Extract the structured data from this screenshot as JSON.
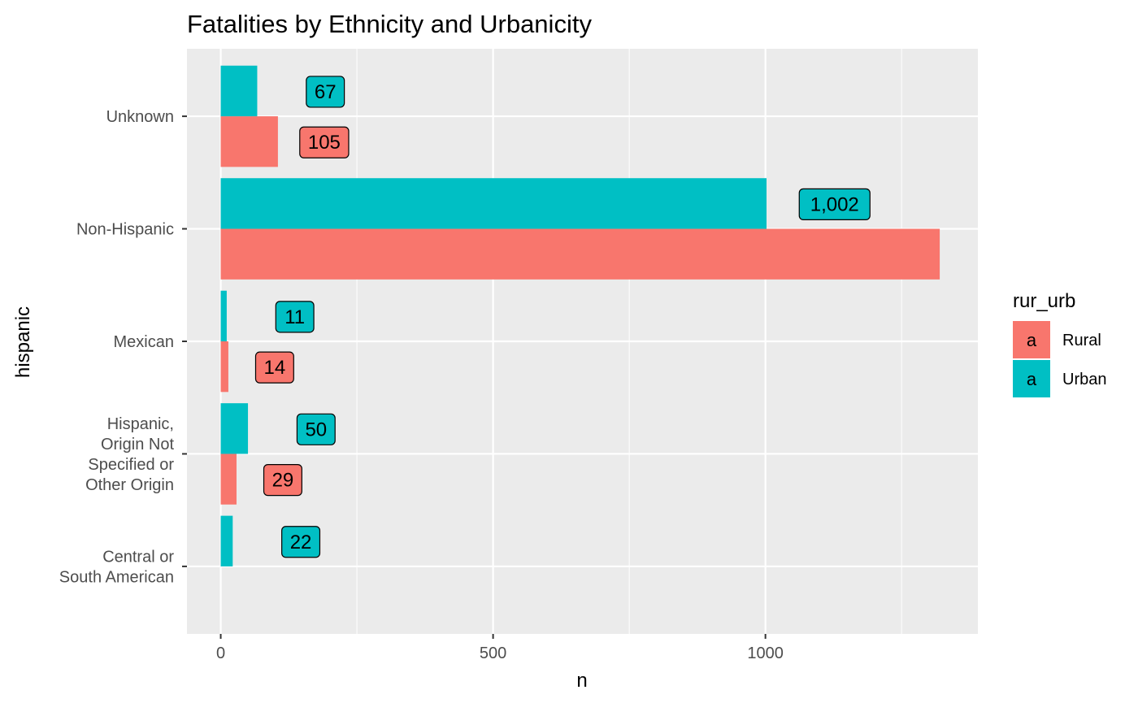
{
  "chart_data": {
    "type": "bar",
    "orientation": "horizontal",
    "title": "Fatalities by Ethnicity and Urbanicity",
    "xlabel": "n",
    "ylabel": "hispanic",
    "xlim": [
      -62,
      1390
    ],
    "xticks": [
      0,
      500,
      1000
    ],
    "xtick_labels": [
      "0",
      "500",
      "1000"
    ],
    "categories": [
      [
        "Unknown"
      ],
      [
        "Non-Hispanic"
      ],
      [
        "Mexican"
      ],
      [
        "Hispanic,",
        "Origin Not",
        "Specified or",
        "Other Origin"
      ],
      [
        "Central or",
        "South American"
      ]
    ],
    "series": [
      {
        "name": "Rural",
        "color": "#F8766D",
        "values": [
          105,
          1320,
          14,
          29,
          null
        ],
        "labels": [
          "105",
          "",
          "14",
          "29",
          ""
        ]
      },
      {
        "name": "Urban",
        "color": "#00BFC4",
        "values": [
          67,
          1002,
          11,
          50,
          22
        ],
        "labels": [
          "67",
          "1,002",
          "11",
          "50",
          "22"
        ]
      }
    ],
    "legend": {
      "title": "rur_urb",
      "key_glyph": "a",
      "position": "right"
    },
    "grid": true,
    "panel_background": "#EBEBEB"
  }
}
